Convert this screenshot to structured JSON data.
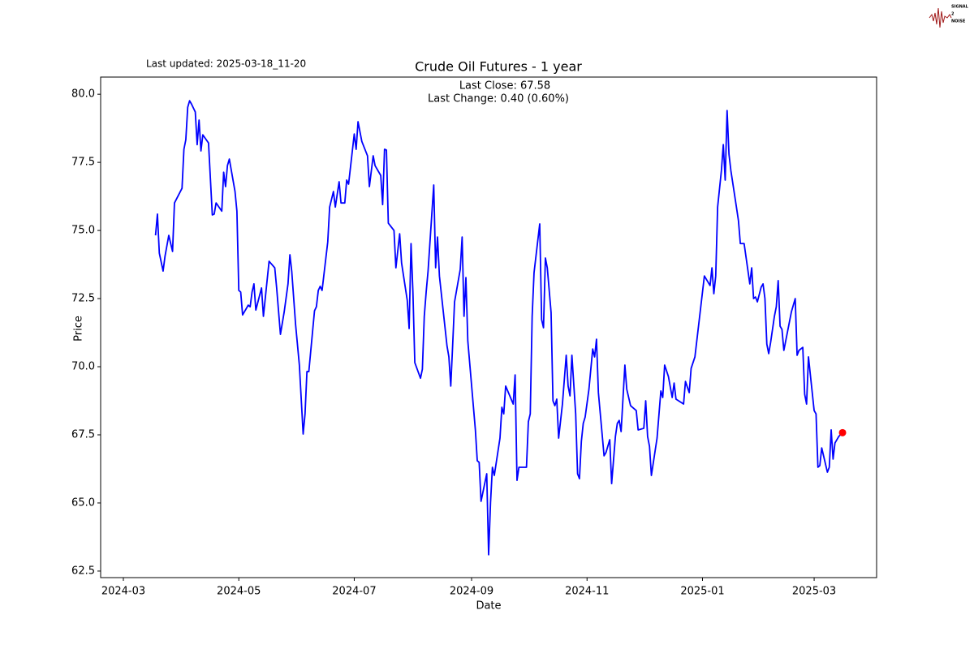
{
  "chart_data": {
    "type": "line",
    "title": "Crude Oil Futures - 1 year",
    "x_label": "Date",
    "y_label": "Price",
    "annotations": {
      "updated": "Last updated: 2025-03-18_11-20",
      "close": "Last Close: 67.58",
      "change": "Last Change: 0.40 (0.60%)"
    },
    "logo": [
      "SIGNAL",
      "2",
      "NOISE"
    ],
    "color": "#0000ff",
    "marker_color": "#ff0000",
    "x": [
      "2024-03-18",
      "2024-03-19",
      "2024-03-20",
      "2024-03-22",
      "2024-03-23",
      "2024-03-25",
      "2024-03-27",
      "2024-03-28",
      "2024-04-01",
      "2024-04-02",
      "2024-04-03",
      "2024-04-04",
      "2024-04-05",
      "2024-04-06",
      "2024-04-08",
      "2024-04-09",
      "2024-04-10",
      "2024-04-11",
      "2024-04-12",
      "2024-04-15",
      "2024-04-17",
      "2024-04-18",
      "2024-04-19",
      "2024-04-22",
      "2024-04-23",
      "2024-04-24",
      "2024-04-25",
      "2024-04-26",
      "2024-04-29",
      "2024-04-30",
      "2024-05-01",
      "2024-05-02",
      "2024-05-03",
      "2024-05-06",
      "2024-05-07",
      "2024-05-08",
      "2024-05-09",
      "2024-05-10",
      "2024-05-13",
      "2024-05-14",
      "2024-05-17",
      "2024-05-20",
      "2024-05-21",
      "2024-05-23",
      "2024-05-25",
      "2024-05-27",
      "2024-05-28",
      "2024-05-29",
      "2024-05-31",
      "2024-06-02",
      "2024-06-04",
      "2024-06-05",
      "2024-06-06",
      "2024-06-07",
      "2024-06-10",
      "2024-06-11",
      "2024-06-12",
      "2024-06-13",
      "2024-06-14",
      "2024-06-17",
      "2024-06-18",
      "2024-06-20",
      "2024-06-21",
      "2024-06-23",
      "2024-06-24",
      "2024-06-26",
      "2024-06-27",
      "2024-06-28",
      "2024-07-01",
      "2024-07-02",
      "2024-07-03",
      "2024-07-05",
      "2024-07-08",
      "2024-07-09",
      "2024-07-11",
      "2024-07-12",
      "2024-07-15",
      "2024-07-16",
      "2024-07-17",
      "2024-07-18",
      "2024-07-19",
      "2024-07-22",
      "2024-07-23",
      "2024-07-25",
      "2024-07-26",
      "2024-07-29",
      "2024-07-30",
      "2024-07-31",
      "2024-08-01",
      "2024-08-02",
      "2024-08-05",
      "2024-08-06",
      "2024-08-07",
      "2024-08-08",
      "2024-08-09",
      "2024-08-12",
      "2024-08-13",
      "2024-08-14",
      "2024-08-15",
      "2024-08-19",
      "2024-08-20",
      "2024-08-21",
      "2024-08-22",
      "2024-08-23",
      "2024-08-26",
      "2024-08-27",
      "2024-08-28",
      "2024-08-29",
      "2024-08-30",
      "2024-09-03",
      "2024-09-04",
      "2024-09-05",
      "2024-09-06",
      "2024-09-09",
      "2024-09-10",
      "2024-09-11",
      "2024-09-12",
      "2024-09-13",
      "2024-09-16",
      "2024-09-17",
      "2024-09-18",
      "2024-09-19",
      "2024-09-23",
      "2024-09-24",
      "2024-09-25",
      "2024-09-26",
      "2024-09-30",
      "2024-10-01",
      "2024-10-02",
      "2024-10-03",
      "2024-10-04",
      "2024-10-07",
      "2024-10-08",
      "2024-10-09",
      "2024-10-10",
      "2024-10-11",
      "2024-10-13",
      "2024-10-14",
      "2024-10-15",
      "2024-10-16",
      "2024-10-17",
      "2024-10-19",
      "2024-10-21",
      "2024-10-22",
      "2024-10-23",
      "2024-10-24",
      "2024-10-26",
      "2024-10-27",
      "2024-10-28",
      "2024-10-29",
      "2024-10-30",
      "2024-10-31",
      "2024-11-02",
      "2024-11-04",
      "2024-11-05",
      "2024-11-06",
      "2024-11-07",
      "2024-11-10",
      "2024-11-11",
      "2024-11-13",
      "2024-11-14",
      "2024-11-16",
      "2024-11-17",
      "2024-11-18",
      "2024-11-19",
      "2024-11-21",
      "2024-11-22",
      "2024-11-24",
      "2024-11-27",
      "2024-11-28",
      "2024-12-01",
      "2024-12-02",
      "2024-12-03",
      "2024-12-04",
      "2024-12-05",
      "2024-12-08",
      "2024-12-10",
      "2024-12-11",
      "2024-12-12",
      "2024-12-14",
      "2024-12-16",
      "2024-12-17",
      "2024-12-18",
      "2024-12-22",
      "2024-12-23",
      "2024-12-25",
      "2024-12-26",
      "2024-12-28",
      "2025-01-02",
      "2025-01-05",
      "2025-01-06",
      "2025-01-07",
      "2025-01-08",
      "2025-01-09",
      "2025-01-11",
      "2025-01-12",
      "2025-01-13",
      "2025-01-14",
      "2025-01-15",
      "2025-01-16",
      "2025-01-19",
      "2025-01-20",
      "2025-01-21",
      "2025-01-23",
      "2025-01-26",
      "2025-01-27",
      "2025-01-28",
      "2025-01-29",
      "2025-01-30",
      "2025-02-01",
      "2025-02-02",
      "2025-02-03",
      "2025-02-04",
      "2025-02-05",
      "2025-02-06",
      "2025-02-08",
      "2025-02-09",
      "2025-02-10",
      "2025-02-11",
      "2025-02-12",
      "2025-02-13",
      "2025-02-17",
      "2025-02-19",
      "2025-02-20",
      "2025-02-21",
      "2025-02-23",
      "2025-02-24",
      "2025-02-25",
      "2025-02-26",
      "2025-03-01",
      "2025-03-02",
      "2025-03-03",
      "2025-03-04",
      "2025-03-05",
      "2025-03-08",
      "2025-03-09",
      "2025-03-10",
      "2025-03-11",
      "2025-03-12",
      "2025-03-14",
      "2025-03-16"
    ],
    "values": [
      74.82,
      75.6,
      74.17,
      73.51,
      74.05,
      74.82,
      74.23,
      76.01,
      76.55,
      77.98,
      78.33,
      79.52,
      79.76,
      79.64,
      79.35,
      78.15,
      79.05,
      77.92,
      78.51,
      78.21,
      75.57,
      75.6,
      76.01,
      75.71,
      77.14,
      76.61,
      77.38,
      77.62,
      76.43,
      75.71,
      72.8,
      72.74,
      71.9,
      72.26,
      72.2,
      72.74,
      73.04,
      72.08,
      72.89,
      71.85,
      73.87,
      73.63,
      72.89,
      71.19,
      72.02,
      73.04,
      74.11,
      73.48,
      71.55,
      70.06,
      67.53,
      68.27,
      69.82,
      69.82,
      72.05,
      72.2,
      72.8,
      72.95,
      72.8,
      74.58,
      75.86,
      76.43,
      75.86,
      76.79,
      76.01,
      76.01,
      76.85,
      76.7,
      78.54,
      77.98,
      78.99,
      78.27,
      77.74,
      76.61,
      77.74,
      77.38,
      77.02,
      75.95,
      77.98,
      77.95,
      75.27,
      75.0,
      73.63,
      74.88,
      73.81,
      72.44,
      71.4,
      74.52,
      72.74,
      70.15,
      69.58,
      69.91,
      71.85,
      72.74,
      73.51,
      76.67,
      73.63,
      74.76,
      73.33,
      70.77,
      70.36,
      69.29,
      70.8,
      72.38,
      73.57,
      74.76,
      71.85,
      73.27,
      70.95,
      67.68,
      66.55,
      66.49,
      65.06,
      66.07,
      63.1,
      65.0,
      66.31,
      66.01,
      67.38,
      68.51,
      68.27,
      69.29,
      68.63,
      69.7,
      65.83,
      66.31,
      66.31,
      67.98,
      68.27,
      71.85,
      73.45,
      75.24,
      71.73,
      71.43,
      73.99,
      73.63,
      71.99,
      68.75,
      68.57,
      68.81,
      67.38,
      68.63,
      70.42,
      69.29,
      68.93,
      70.42,
      68.27,
      66.07,
      65.89,
      67.26,
      67.92,
      68.15,
      69.17,
      70.65,
      70.36,
      71.01,
      69.05,
      66.73,
      66.85,
      67.32,
      65.71,
      67.44,
      67.92,
      68.03,
      67.62,
      70.06,
      69.17,
      68.57,
      68.39,
      67.68,
      67.74,
      68.75,
      67.44,
      67.08,
      66.01,
      67.38,
      69.11,
      68.87,
      70.06,
      69.64,
      68.87,
      69.4,
      68.81,
      68.63,
      69.46,
      69.05,
      69.94,
      70.36,
      73.33,
      72.98,
      73.63,
      72.68,
      73.33,
      75.86,
      77.2,
      78.15,
      76.85,
      79.4,
      77.8,
      77.2,
      75.83,
      75.36,
      74.52,
      74.52,
      73.04,
      73.63,
      72.5,
      72.56,
      72.38,
      72.92,
      73.04,
      72.5,
      70.83,
      70.48,
      70.89,
      71.85,
      72.2,
      73.16,
      71.49,
      71.37,
      70.6,
      72.02,
      72.5,
      70.42,
      70.6,
      70.71,
      68.99,
      68.63,
      70.36,
      68.39,
      68.27,
      66.31,
      66.37,
      67.02,
      66.13,
      66.31,
      67.68,
      66.61,
      67.2,
      67.44,
      67.58
    ],
    "xlim": [
      "2024-02-18",
      "2025-04-03"
    ],
    "xticks": [
      {
        "value": "2024-03-01",
        "label": "2024-03"
      },
      {
        "value": "2024-05-01",
        "label": "2024-05"
      },
      {
        "value": "2024-07-01",
        "label": "2024-07"
      },
      {
        "value": "2024-09-01",
        "label": "2024-09"
      },
      {
        "value": "2024-11-01",
        "label": "2024-11"
      },
      {
        "value": "2025-01-01",
        "label": "2025-01"
      },
      {
        "value": "2025-03-01",
        "label": "2025-03"
      }
    ],
    "ylim": [
      62.26,
      80.63
    ],
    "yticks": [
      62.5,
      {
        "value": 65,
        "label": "65.0"
      },
      67.5,
      {
        "value": 70,
        "label": "70.0"
      },
      72.5,
      {
        "value": 75,
        "label": "75.0"
      },
      77.5,
      {
        "value": 80,
        "label": "80.0"
      }
    ]
  }
}
